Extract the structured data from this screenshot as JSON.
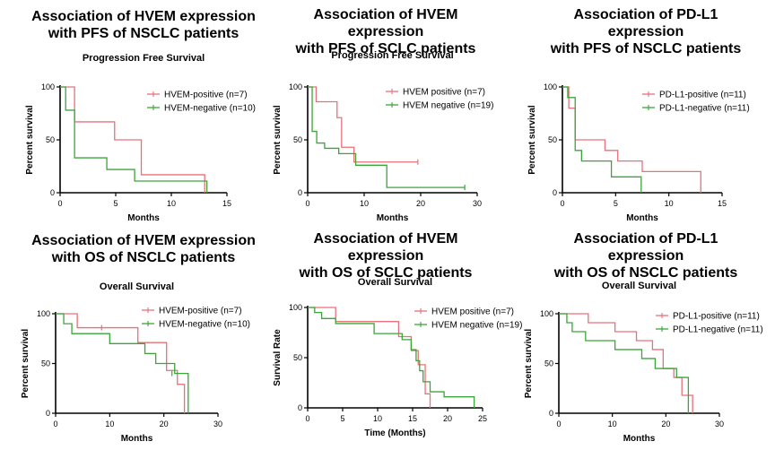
{
  "colors": {
    "positive": "#e8707a",
    "negative": "#3aa63a",
    "axis": "#000000"
  },
  "panels": [
    {
      "heading": "Association of HVEM expression\nwith PFS of NSCLC patients",
      "chart_data": {
        "type": "line",
        "step": true,
        "title": "Progression Free Survival",
        "xlabel": "Months",
        "ylabel": "Percent survival",
        "xlim": [
          0,
          15
        ],
        "ylim": [
          0,
          100
        ],
        "xticks": [
          0,
          5,
          10,
          15
        ],
        "yticks": [
          0,
          50,
          100
        ],
        "legend": "top-right",
        "series": [
          {
            "name": "HVEM-positive (n=7)",
            "color": "positive",
            "x": [
              0,
              1.3,
              4.9,
              7.3,
              13.0
            ],
            "y": [
              100,
              67,
              50,
              17,
              0
            ],
            "censor": []
          },
          {
            "name": "HVEM-negative (n=10)",
            "color": "negative",
            "x": [
              0,
              0.5,
              1.3,
              4.2,
              6.7,
              13.2
            ],
            "y": [
              100,
              78,
              33,
              22,
              11,
              0
            ],
            "censor": []
          }
        ]
      }
    },
    {
      "heading": "Association of HVEM\nexpression\nwith PFS of SCLC patients",
      "chart_data": {
        "type": "line",
        "step": true,
        "title": "Progression Free Survival",
        "xlabel": "Months",
        "ylabel": "Percent survival",
        "xlim": [
          0,
          30
        ],
        "ylim": [
          0,
          100
        ],
        "xticks": [
          0,
          10,
          20,
          30
        ],
        "yticks": [
          0,
          50,
          100
        ],
        "legend": "top-right",
        "series": [
          {
            "name": "HVEM positive (n=7)",
            "color": "positive",
            "x": [
              0,
              1.5,
              5.2,
              6.0,
              8.2,
              19.5
            ],
            "y": [
              100,
              86,
              71,
              43,
              29,
              29
            ],
            "censor": [
              [
                19.5,
                29
              ]
            ]
          },
          {
            "name": "HVEM negative (n=19)",
            "color": "negative",
            "x": [
              0,
              0.8,
              1.6,
              3.0,
              5.5,
              8.5,
              14.0,
              27.8
            ],
            "y": [
              100,
              58,
              47,
              42,
              37,
              26,
              5,
              5
            ],
            "censor": [
              [
                27.8,
                5
              ]
            ]
          }
        ]
      }
    },
    {
      "heading": "Association of PD-L1\nexpression\nwith PFS of NSCLC patients",
      "chart_data": {
        "type": "line",
        "step": true,
        "title": "",
        "xlabel": "Months",
        "ylabel": "Percent survival",
        "xlim": [
          0,
          15
        ],
        "ylim": [
          0,
          100
        ],
        "xticks": [
          0,
          5,
          10,
          15
        ],
        "yticks": [
          0,
          50,
          100
        ],
        "legend": "top-right",
        "series": [
          {
            "name": "PD-L1-positive (n=11)",
            "color": "positive",
            "x": [
              0,
              0.6,
              1.2,
              4.0,
              5.2,
              7.5,
              13.0
            ],
            "y": [
              100,
              80,
              50,
              40,
              30,
              20,
              0
            ],
            "censor": []
          },
          {
            "name": "PD-L1-negative (n=11)",
            "color": "negative",
            "x": [
              0,
              0.5,
              1.2,
              1.8,
              4.6,
              7.4
            ],
            "y": [
              100,
              90,
              40,
              30,
              15,
              0
            ],
            "censor": []
          }
        ]
      }
    },
    {
      "heading": "Association of HVEM expression\nwith OS of NSCLC patients",
      "chart_data": {
        "type": "line",
        "step": true,
        "title": "Overall Survival",
        "xlabel": "Months",
        "ylabel": "Percent survival",
        "xlim": [
          0,
          30
        ],
        "ylim": [
          0,
          100
        ],
        "xticks": [
          0,
          10,
          20,
          30
        ],
        "yticks": [
          0,
          50,
          100
        ],
        "legend": "top-right",
        "series": [
          {
            "name": "HVEM-positive (n=7)",
            "color": "positive",
            "x": [
              0,
              4.0,
              15.2,
              20.5,
              22.5,
              23.8
            ],
            "y": [
              100,
              86,
              71,
              43,
              29,
              0
            ],
            "censor": [
              [
                8.5,
                86
              ]
            ]
          },
          {
            "name": "HVEM-negative (n=10)",
            "color": "negative",
            "x": [
              0,
              1.5,
              3.0,
              10.0,
              16.5,
              18.5,
              22.0,
              24.5
            ],
            "y": [
              100,
              90,
              80,
              70,
              60,
              50,
              40,
              0
            ],
            "censor": [
              [
                21.5,
                40
              ]
            ]
          }
        ]
      }
    },
    {
      "heading": "Association of HVEM\nexpression\nwith OS of SCLC patients",
      "chart_data": {
        "type": "line",
        "step": true,
        "title": "Overall Survival",
        "xlabel": "Time (Months)",
        "ylabel": "Survival Rate",
        "xlim": [
          0,
          25
        ],
        "ylim": [
          0,
          100
        ],
        "xticks": [
          0,
          5,
          10,
          15,
          20,
          25
        ],
        "yticks": [
          0,
          50,
          100
        ],
        "legend": "top-right",
        "series": [
          {
            "name": "HVEM positive (n=7)",
            "color": "positive",
            "x": [
              0,
              4.0,
              13.0,
              14.8,
              15.8,
              16.8,
              17.5
            ],
            "y": [
              100,
              86,
              71,
              57,
              43,
              14,
              0
            ],
            "censor": []
          },
          {
            "name": "HVEM negative (n=19)",
            "color": "negative",
            "x": [
              0,
              1.0,
              2.0,
              4.0,
              9.5,
              13.5,
              14.8,
              15.5,
              16.0,
              16.5,
              17.5,
              19.5,
              23.8
            ],
            "y": [
              100,
              95,
              89,
              84,
              74,
              68,
              58,
              47,
              37,
              26,
              16,
              11,
              0
            ],
            "censor": []
          }
        ]
      }
    },
    {
      "heading": "Association of PD-L1\nexpression\nwith OS of NSCLC patients",
      "chart_data": {
        "type": "line",
        "step": true,
        "title": "Overall Survival",
        "xlabel": "Months",
        "ylabel": "Percent survival",
        "xlim": [
          0,
          30
        ],
        "ylim": [
          0,
          100
        ],
        "xticks": [
          0,
          10,
          20,
          30
        ],
        "yticks": [
          0,
          50,
          100
        ],
        "legend": "top-right",
        "series": [
          {
            "name": "PD-L1-positive (n=11)",
            "color": "positive",
            "x": [
              0,
              5.5,
              10.5,
              14.5,
              17.5,
              19.5,
              21.5,
              23.0,
              25.0
            ],
            "y": [
              100,
              91,
              82,
              73,
              64,
              45,
              36,
              18,
              0
            ],
            "censor": []
          },
          {
            "name": "PD-L1-negative (n=11)",
            "color": "negative",
            "x": [
              0,
              1.5,
              2.5,
              5.0,
              10.5,
              15.5,
              18.0,
              22.0,
              24.2
            ],
            "y": [
              100,
              91,
              82,
              73,
              64,
              55,
              45,
              36,
              0
            ],
            "censor": []
          }
        ]
      }
    }
  ]
}
